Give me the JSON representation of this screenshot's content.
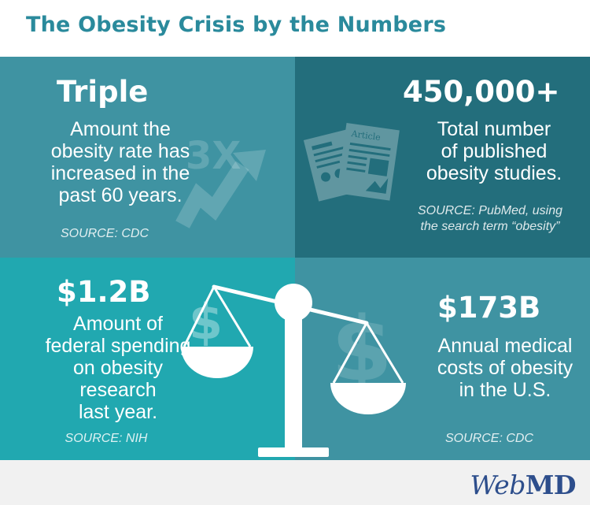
{
  "title": "The Obesity Crisis by the Numbers",
  "colors": {
    "title": "#2a8a9c",
    "panel_triple": "#3f93a2",
    "panel_studies": "#236e7c",
    "panel_spending": "#21a8b0",
    "panel_costs": "#3f93a2",
    "footer": "#f1f1f1",
    "logo": "#2d4e8c"
  },
  "panels": [
    {
      "stat": "Triple",
      "description_lines": [
        "Amount the",
        "obesity rate has",
        "increased in the",
        "past 60 years."
      ],
      "source": "SOURCE: CDC",
      "icon": "upward-trend-arrow-icon",
      "icon_text": "3X"
    },
    {
      "stat": "450,000+",
      "description_lines": [
        "Total number",
        "of published",
        "obesity studies."
      ],
      "source_lines": [
        "SOURCE: PubMed, using",
        "the search term “obesity”"
      ],
      "icon": "research-papers-icon",
      "icon_text": "Article"
    },
    {
      "stat": "$1.2B",
      "description_lines": [
        "Amount of",
        "federal spending",
        "on obesity",
        "research",
        "last year."
      ],
      "source": "SOURCE: NIH",
      "icon": "dollar-sign-icon",
      "icon_text": "$"
    },
    {
      "stat": "$173B",
      "description_lines": [
        "Annual medical",
        "costs of obesity",
        "in the U.S."
      ],
      "source": "SOURCE: CDC",
      "icon": "dollar-sign-icon",
      "icon_text": "$"
    }
  ],
  "center_graphic": "balance-scale-icon",
  "logo": {
    "part1": "Web",
    "part2": "MD"
  }
}
